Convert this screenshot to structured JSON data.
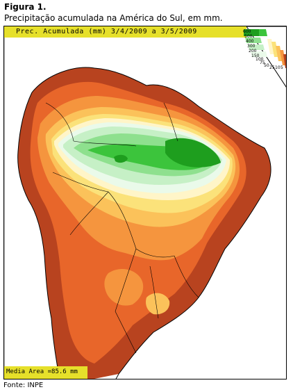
{
  "figure": {
    "label": "Figura 1.",
    "caption": "Precipitação acumulada na América do Sul, em mm."
  },
  "map": {
    "header": "Prec. Acumulada (mm) 3/4/2009 a 3/5/2009",
    "mean_area": "Media Area =85.6 mm",
    "colors": {
      "dark_green": "#1e9e1e",
      "green": "#3cc43c",
      "light_green": "#8ee08e",
      "pale_green": "#c6f0c6",
      "very_pale": "#eafaea",
      "cream": "#fff5c8",
      "yellow": "#fbe27a",
      "light_orange": "#fbc25a",
      "orange": "#f5953e",
      "red_orange": "#e8662a",
      "dark_red": "#b8431f",
      "band": "#e6e02a"
    },
    "legend": {
      "labels": [
        "600",
        "500",
        "400",
        "300",
        "200",
        "150",
        "100",
        "75",
        "50",
        "25",
        "10",
        "5"
      ]
    }
  },
  "source": "Fonte: INPE"
}
